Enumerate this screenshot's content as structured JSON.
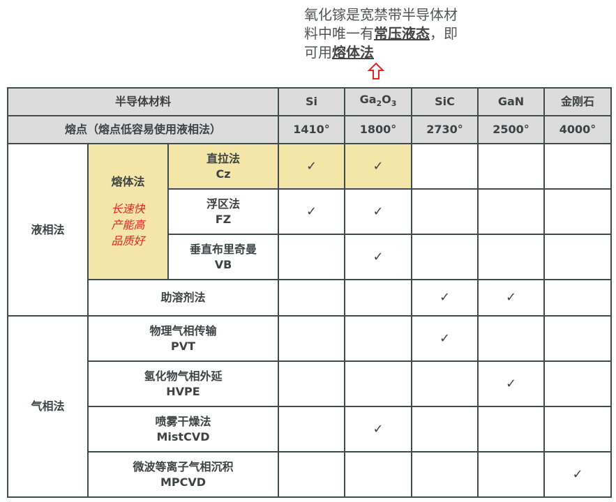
{
  "note": {
    "line1": "氧化镓是宽禁带半导体材料中唯一有",
    "bold1": "常压液态",
    "mid": "，即可用",
    "bold2": "熔体法"
  },
  "arrow_icon": "up-arrow-outline",
  "arrow_color": "#e8231f",
  "header": {
    "label": "半导体材料",
    "materials": [
      {
        "name": "Si"
      },
      {
        "name": "Ga",
        "sub1": "2",
        "o": "O",
        "sub2": "3"
      },
      {
        "name": "SiC"
      },
      {
        "name": "GaN"
      },
      {
        "name": "金刚石"
      }
    ]
  },
  "melting": {
    "label": "熔点（熔点低容易使用液相法）",
    "values": [
      "1410°",
      "1800°",
      "2730°",
      "2500°",
      "4000°"
    ]
  },
  "groups": {
    "liquid": "液相法",
    "melt": "熔体法",
    "melt_note": [
      "长速快",
      "产能高",
      "品质好"
    ],
    "vapor": "气相法"
  },
  "check_glyph": "✓",
  "rows": [
    {
      "cn": "直拉法",
      "en": "Cz",
      "checks": [
        true,
        true,
        false,
        false,
        false
      ]
    },
    {
      "cn": "浮区法",
      "en": "FZ",
      "checks": [
        true,
        true,
        false,
        false,
        false
      ]
    },
    {
      "cn": "垂直布里奇曼",
      "en": "VB",
      "checks": [
        false,
        true,
        false,
        false,
        false
      ]
    },
    {
      "cn": "助溶剂法",
      "en": "",
      "checks": [
        false,
        false,
        true,
        true,
        false
      ]
    },
    {
      "cn": "物理气相传输",
      "en": "PVT",
      "checks": [
        false,
        false,
        true,
        false,
        false
      ]
    },
    {
      "cn": "氢化物气相外延",
      "en": "HVPE",
      "checks": [
        false,
        false,
        false,
        true,
        false
      ]
    },
    {
      "cn": "喷雾干燥法",
      "en": "MistCVD",
      "checks": [
        false,
        true,
        false,
        false,
        false
      ]
    },
    {
      "cn": "微波等离子气相沉积",
      "en": "MPCVD",
      "checks": [
        false,
        false,
        false,
        false,
        true
      ]
    }
  ]
}
